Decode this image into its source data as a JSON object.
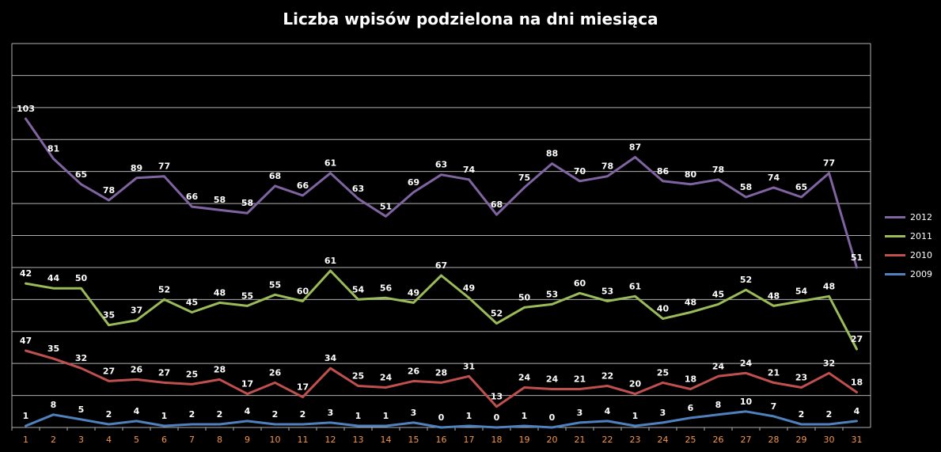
{
  "chart_data": {
    "type": "line",
    "title": "Liczba wpisów podzielona na dni miesiąca",
    "categories": [
      "1",
      "2",
      "3",
      "4",
      "5",
      "6",
      "7",
      "8",
      "9",
      "10",
      "11",
      "12",
      "13",
      "14",
      "15",
      "16",
      "17",
      "18",
      "19",
      "20",
      "21",
      "22",
      "23",
      "24",
      "25",
      "26",
      "27",
      "28",
      "29",
      "30",
      "31"
    ],
    "stacked": true,
    "grid": true,
    "legend_position": "right",
    "series": [
      {
        "name": "2009",
        "color": "#4f81bd",
        "values": [
          1,
          8,
          5,
          2,
          4,
          1,
          2,
          2,
          4,
          2,
          2,
          3,
          1,
          1,
          3,
          0,
          1,
          0,
          1,
          0,
          3,
          4,
          1,
          3,
          6,
          8,
          10,
          7,
          2,
          2,
          4
        ]
      },
      {
        "name": "2010",
        "color": "#c0504d",
        "values": [
          47,
          35,
          32,
          27,
          26,
          27,
          25,
          28,
          17,
          26,
          17,
          34,
          25,
          24,
          26,
          28,
          31,
          13,
          24,
          24,
          21,
          22,
          20,
          25,
          18,
          24,
          24,
          21,
          23,
          32,
          18
        ]
      },
      {
        "name": "2011",
        "color": "#9bbb59",
        "values": [
          42,
          44,
          50,
          35,
          37,
          52,
          45,
          48,
          55,
          55,
          60,
          61,
          54,
          56,
          49,
          67,
          49,
          52,
          50,
          53,
          60,
          53,
          61,
          40,
          48,
          45,
          52,
          48,
          54,
          48,
          27
        ]
      },
      {
        "name": "2012",
        "color": "#8064a2",
        "values": [
          103,
          81,
          65,
          78,
          89,
          77,
          66,
          58,
          58,
          68,
          66,
          61,
          63,
          51,
          69,
          63,
          74,
          68,
          75,
          88,
          70,
          78,
          87,
          86,
          80,
          78,
          58,
          74,
          65,
          77,
          51
        ]
      }
    ],
    "legend_order": [
      "2012",
      "2011",
      "2010",
      "2009"
    ],
    "ylim": [
      0,
      240
    ]
  },
  "colors": {
    "background": "#000000",
    "gridline": "#b0b0b0",
    "text": "#ffffff",
    "tick_label": "#f79646"
  }
}
